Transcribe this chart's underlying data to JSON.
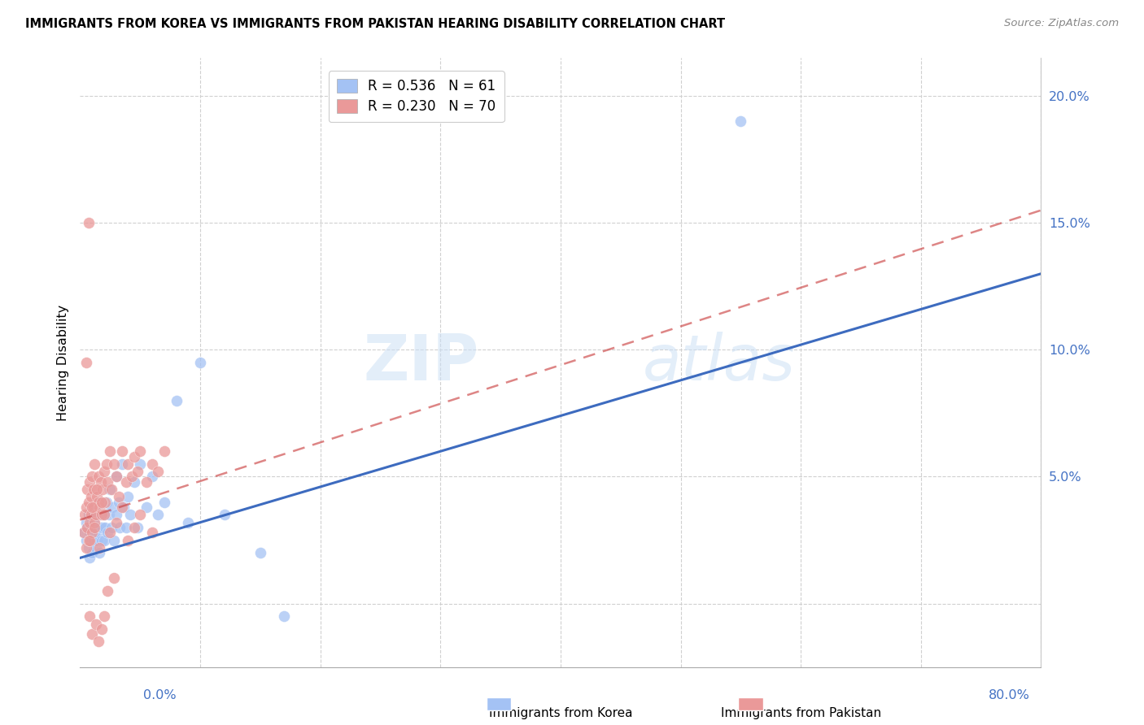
{
  "title": "IMMIGRANTS FROM KOREA VS IMMIGRANTS FROM PAKISTAN HEARING DISABILITY CORRELATION CHART",
  "source": "Source: ZipAtlas.com",
  "ylabel": "Hearing Disability",
  "yticks": [
    0.0,
    0.05,
    0.1,
    0.15,
    0.2
  ],
  "ytick_labels": [
    "",
    "5.0%",
    "10.0%",
    "15.0%",
    "20.0%"
  ],
  "xlim": [
    0.0,
    0.8
  ],
  "ylim": [
    -0.025,
    0.215
  ],
  "korea_R": 0.536,
  "korea_N": 61,
  "pakistan_R": 0.23,
  "pakistan_N": 70,
  "korea_color": "#a4c2f4",
  "pakistan_color": "#ea9999",
  "korea_line_color": "#3d6bbf",
  "pakistan_line_color": "#cc4444",
  "watermark_zip": "ZIP",
  "watermark_atlas": "atlas",
  "legend_label_korea": "Immigrants from Korea",
  "legend_label_pakistan": "Immigrants from Pakistan",
  "korea_line_x0": 0.0,
  "korea_line_y0": 0.018,
  "korea_line_x1": 0.8,
  "korea_line_y1": 0.13,
  "pak_line_x0": 0.0,
  "pak_line_y0": 0.033,
  "pak_line_x1": 0.8,
  "pak_line_y1": 0.155,
  "korea_scatter_x": [
    0.003,
    0.005,
    0.005,
    0.006,
    0.007,
    0.007,
    0.008,
    0.008,
    0.009,
    0.009,
    0.01,
    0.01,
    0.01,
    0.011,
    0.011,
    0.012,
    0.012,
    0.013,
    0.013,
    0.014,
    0.015,
    0.015,
    0.016,
    0.016,
    0.017,
    0.018,
    0.018,
    0.019,
    0.02,
    0.02,
    0.021,
    0.022,
    0.023,
    0.024,
    0.025,
    0.026,
    0.027,
    0.028,
    0.03,
    0.03,
    0.032,
    0.033,
    0.035,
    0.036,
    0.038,
    0.04,
    0.042,
    0.045,
    0.048,
    0.05,
    0.055,
    0.06,
    0.065,
    0.07,
    0.08,
    0.09,
    0.1,
    0.12,
    0.15,
    0.17,
    0.55
  ],
  "korea_scatter_y": [
    0.028,
    0.032,
    0.025,
    0.03,
    0.022,
    0.035,
    0.018,
    0.028,
    0.025,
    0.032,
    0.02,
    0.03,
    0.038,
    0.025,
    0.033,
    0.028,
    0.035,
    0.022,
    0.03,
    0.025,
    0.04,
    0.028,
    0.035,
    0.02,
    0.03,
    0.025,
    0.038,
    0.03,
    0.025,
    0.035,
    0.03,
    0.04,
    0.028,
    0.035,
    0.045,
    0.03,
    0.038,
    0.025,
    0.05,
    0.035,
    0.04,
    0.03,
    0.055,
    0.038,
    0.03,
    0.042,
    0.035,
    0.048,
    0.03,
    0.055,
    0.038,
    0.05,
    0.035,
    0.04,
    0.08,
    0.032,
    0.095,
    0.035,
    0.02,
    -0.005,
    0.19
  ],
  "pakistan_scatter_x": [
    0.003,
    0.004,
    0.005,
    0.005,
    0.006,
    0.006,
    0.007,
    0.007,
    0.008,
    0.008,
    0.009,
    0.009,
    0.01,
    0.01,
    0.011,
    0.011,
    0.012,
    0.012,
    0.013,
    0.014,
    0.015,
    0.015,
    0.016,
    0.017,
    0.018,
    0.019,
    0.02,
    0.021,
    0.022,
    0.023,
    0.025,
    0.026,
    0.028,
    0.03,
    0.032,
    0.035,
    0.038,
    0.04,
    0.043,
    0.045,
    0.048,
    0.05,
    0.055,
    0.06,
    0.065,
    0.07,
    0.008,
    0.01,
    0.012,
    0.014,
    0.016,
    0.018,
    0.02,
    0.025,
    0.03,
    0.035,
    0.04,
    0.045,
    0.05,
    0.06,
    0.005,
    0.007,
    0.008,
    0.01,
    0.013,
    0.015,
    0.018,
    0.02,
    0.023,
    0.028
  ],
  "pakistan_scatter_y": [
    0.028,
    0.035,
    0.022,
    0.038,
    0.03,
    0.045,
    0.025,
    0.04,
    0.032,
    0.048,
    0.035,
    0.042,
    0.028,
    0.05,
    0.038,
    0.045,
    0.032,
    0.055,
    0.035,
    0.042,
    0.04,
    0.05,
    0.038,
    0.048,
    0.035,
    0.045,
    0.052,
    0.04,
    0.055,
    0.048,
    0.06,
    0.045,
    0.055,
    0.05,
    0.042,
    0.06,
    0.048,
    0.055,
    0.05,
    0.058,
    0.052,
    0.06,
    0.048,
    0.055,
    0.052,
    0.06,
    0.025,
    0.038,
    0.03,
    0.045,
    0.022,
    0.04,
    0.035,
    0.028,
    0.032,
    0.038,
    0.025,
    0.03,
    0.035,
    0.028,
    0.095,
    0.15,
    -0.005,
    -0.012,
    -0.008,
    -0.015,
    -0.01,
    -0.005,
    0.005,
    0.01
  ]
}
